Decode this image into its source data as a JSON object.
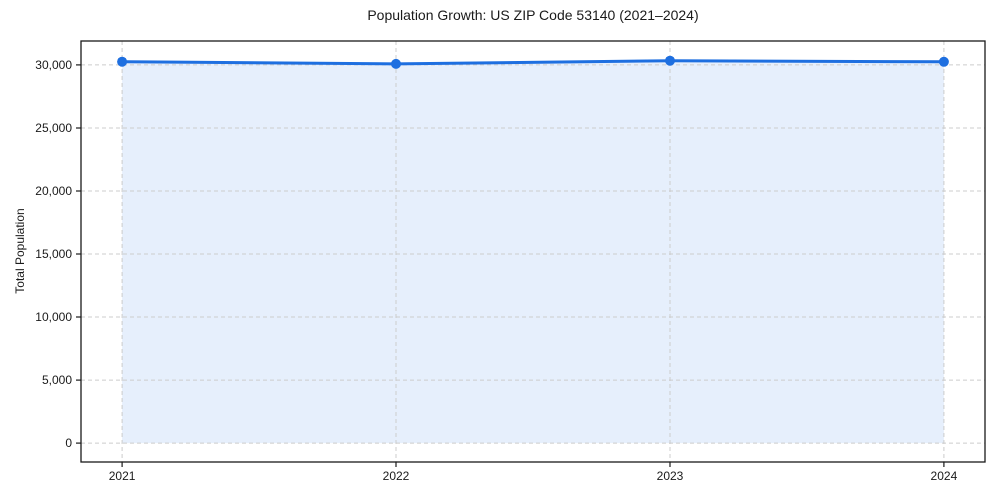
{
  "chart_data": {
    "type": "area",
    "title": "Population Growth: US ZIP Code 53140 (2021–2024)",
    "xlabel": "",
    "ylabel": "Total Population",
    "x": [
      2021,
      2022,
      2023,
      2024
    ],
    "x_labels": [
      "2021",
      "2022",
      "2023",
      "2024"
    ],
    "series": [
      {
        "name": "Total Population",
        "values": [
          30260,
          30080,
          30340,
          30250
        ]
      }
    ],
    "fill_to": 0,
    "yticks": [
      0,
      5000,
      10000,
      15000,
      20000,
      25000,
      30000
    ],
    "ytick_labels": [
      "0",
      "5,000",
      "10,000",
      "15,000",
      "20,000",
      "25,000",
      "30,000"
    ],
    "ylim": [
      -1500,
      31900
    ],
    "xlim": [
      2020.85,
      2024.15
    ],
    "grid": "dashed, both axes, at ticks",
    "legend": "none",
    "marker": "filled-circle",
    "colors": {
      "line": "#1e6fe0",
      "marker": "#1e6fe0",
      "fill": "rgba(30,111,224,0.11)",
      "grid": "#cccccc",
      "spine": "#1a1a1a",
      "text": "#1a1a1a",
      "background": "#ffffff"
    }
  }
}
